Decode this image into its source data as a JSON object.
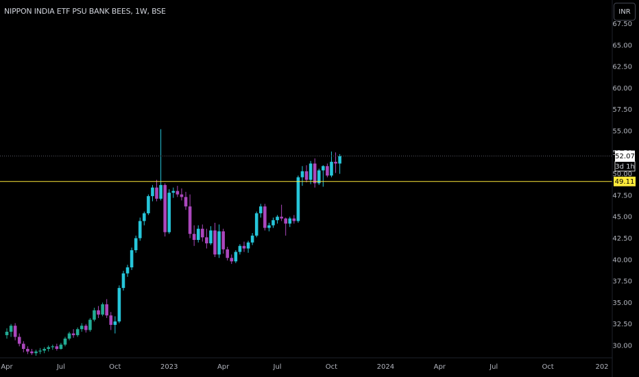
{
  "header": {
    "title": "NIPPON INDIA ETF PSU BANK BEES, 1W, BSE",
    "currency": "INR"
  },
  "price_labels": {
    "last_price": "52.07",
    "countdown": "3d 1h",
    "hline_price": "49.11"
  },
  "colors": {
    "background": "#000000",
    "up": "#22ab94",
    "up_bright": "#26c6da",
    "down": "#ab47bc",
    "hline": "#ffeb3b",
    "axis_text": "#b2b5be"
  },
  "chart_data": {
    "type": "candlestick",
    "title": "NIPPON INDIA ETF PSU BANK BEES, 1W, BSE",
    "y_ticks": [
      "30.00",
      "32.50",
      "35.00",
      "37.50",
      "40.00",
      "42.50",
      "45.00",
      "47.50",
      "50.00",
      "52.50",
      "55.00",
      "57.50",
      "60.00",
      "62.50",
      "65.00",
      "67.50"
    ],
    "ylim": [
      29.0,
      68.0
    ],
    "x_ticks": [
      {
        "label": "Apr",
        "week": 0
      },
      {
        "label": "Jul",
        "week": 13
      },
      {
        "label": "Oct",
        "week": 26
      },
      {
        "label": "2023",
        "week": 39
      },
      {
        "label": "Apr",
        "week": 52
      },
      {
        "label": "Jul",
        "week": 65
      },
      {
        "label": "Oct",
        "week": 78
      },
      {
        "label": "2024",
        "week": 91
      },
      {
        "label": "Apr",
        "week": 104
      },
      {
        "label": "Jul",
        "week": 117
      },
      {
        "label": "Oct",
        "week": 130
      },
      {
        "label": "202",
        "week": 143
      }
    ],
    "horizontal_lines": [
      {
        "name": "last-price-line",
        "value": 52.07,
        "style": "dotted"
      },
      {
        "name": "horizontal-level",
        "value": 49.11,
        "style": "solid"
      }
    ],
    "candles": [
      [
        31.2,
        32.0,
        30.8,
        31.6
      ],
      [
        31.6,
        32.5,
        31.0,
        32.3
      ],
      [
        32.3,
        32.6,
        30.6,
        31.0
      ],
      [
        31.0,
        31.4,
        29.9,
        30.2
      ],
      [
        30.2,
        30.5,
        29.2,
        29.6
      ],
      [
        29.6,
        29.9,
        29.0,
        29.3
      ],
      [
        29.3,
        29.6,
        28.9,
        29.1
      ],
      [
        29.1,
        29.5,
        28.8,
        29.3
      ],
      [
        29.3,
        29.7,
        29.0,
        29.4
      ],
      [
        29.4,
        29.8,
        29.1,
        29.6
      ],
      [
        29.6,
        30.0,
        29.3,
        29.8
      ],
      [
        29.8,
        30.1,
        29.5,
        29.9
      ],
      [
        29.9,
        30.2,
        29.4,
        29.6
      ],
      [
        29.6,
        30.3,
        29.5,
        30.1
      ],
      [
        30.1,
        31.0,
        29.9,
        30.8
      ],
      [
        30.8,
        31.6,
        30.6,
        31.4
      ],
      [
        31.4,
        31.9,
        30.9,
        31.2
      ],
      [
        31.2,
        32.1,
        31.0,
        31.9
      ],
      [
        31.9,
        32.6,
        31.6,
        32.3
      ],
      [
        32.3,
        32.5,
        31.5,
        31.8
      ],
      [
        31.8,
        33.2,
        31.6,
        33.0
      ],
      [
        33.0,
        34.4,
        32.8,
        34.1
      ],
      [
        34.1,
        34.6,
        33.2,
        33.6
      ],
      [
        33.6,
        35.0,
        33.4,
        34.8
      ],
      [
        34.8,
        35.4,
        33.2,
        33.5
      ],
      [
        33.5,
        33.9,
        31.8,
        32.4
      ],
      [
        32.4,
        33.4,
        31.4,
        32.8
      ],
      [
        32.8,
        37.0,
        32.6,
        36.7
      ],
      [
        36.7,
        38.7,
        36.4,
        38.4
      ],
      [
        38.4,
        39.4,
        38.0,
        39.1
      ],
      [
        39.1,
        41.4,
        38.8,
        41.1
      ],
      [
        41.1,
        42.8,
        40.8,
        42.5
      ],
      [
        42.5,
        44.9,
        42.2,
        44.5
      ],
      [
        44.5,
        45.6,
        44.0,
        45.4
      ],
      [
        45.4,
        47.6,
        45.2,
        47.4
      ],
      [
        47.4,
        48.7,
        46.8,
        48.4
      ],
      [
        48.4,
        49.3,
        46.8,
        47.1
      ],
      [
        47.1,
        55.2,
        46.9,
        48.7
      ],
      [
        48.7,
        48.9,
        42.7,
        43.2
      ],
      [
        43.2,
        48.2,
        43.0,
        47.8
      ],
      [
        47.8,
        48.4,
        47.2,
        48.0
      ],
      [
        48.0,
        48.6,
        47.3,
        47.6
      ],
      [
        47.6,
        48.3,
        46.9,
        47.3
      ],
      [
        47.3,
        47.9,
        45.8,
        46.2
      ],
      [
        46.2,
        47.6,
        42.5,
        43.0
      ],
      [
        43.0,
        44.0,
        41.6,
        42.3
      ],
      [
        42.3,
        44.0,
        42.0,
        43.6
      ],
      [
        43.6,
        44.1,
        42.1,
        42.6
      ],
      [
        42.6,
        43.6,
        41.3,
        41.9
      ],
      [
        41.9,
        43.9,
        41.7,
        43.4
      ],
      [
        43.4,
        44.3,
        40.3,
        40.6
      ],
      [
        40.6,
        44.1,
        40.2,
        43.3
      ],
      [
        43.3,
        43.6,
        40.7,
        41.2
      ],
      [
        41.2,
        41.5,
        39.9,
        40.2
      ],
      [
        40.2,
        40.6,
        39.5,
        39.8
      ],
      [
        39.8,
        41.1,
        39.6,
        40.9
      ],
      [
        40.9,
        41.8,
        40.6,
        41.6
      ],
      [
        41.6,
        42.1,
        40.9,
        41.3
      ],
      [
        41.3,
        42.2,
        40.8,
        42.0
      ],
      [
        42.0,
        43.1,
        41.7,
        42.8
      ],
      [
        42.8,
        45.6,
        42.6,
        45.4
      ],
      [
        45.4,
        46.5,
        44.9,
        46.2
      ],
      [
        46.2,
        46.5,
        43.4,
        43.7
      ],
      [
        43.7,
        44.3,
        43.3,
        44.0
      ],
      [
        44.0,
        44.9,
        43.7,
        44.6
      ],
      [
        44.6,
        45.2,
        44.2,
        45.0
      ],
      [
        45.0,
        46.4,
        44.5,
        44.8
      ],
      [
        44.8,
        44.9,
        42.8,
        44.2
      ],
      [
        44.2,
        45.0,
        43.8,
        44.8
      ],
      [
        44.8,
        45.2,
        44.2,
        44.5
      ],
      [
        44.5,
        49.8,
        44.3,
        49.6
      ],
      [
        49.6,
        50.9,
        48.6,
        50.3
      ],
      [
        50.3,
        51.0,
        49.0,
        49.3
      ],
      [
        49.3,
        51.5,
        48.8,
        51.2
      ],
      [
        51.2,
        51.8,
        48.4,
        48.9
      ],
      [
        48.9,
        50.6,
        48.7,
        50.4
      ],
      [
        50.4,
        51.0,
        48.5,
        50.9
      ],
      [
        50.9,
        51.2,
        49.6,
        49.8
      ],
      [
        49.8,
        52.6,
        49.6,
        51.4
      ],
      [
        51.4,
        52.5,
        50.1,
        51.2
      ],
      [
        51.2,
        52.3,
        50.0,
        52.07
      ]
    ]
  }
}
